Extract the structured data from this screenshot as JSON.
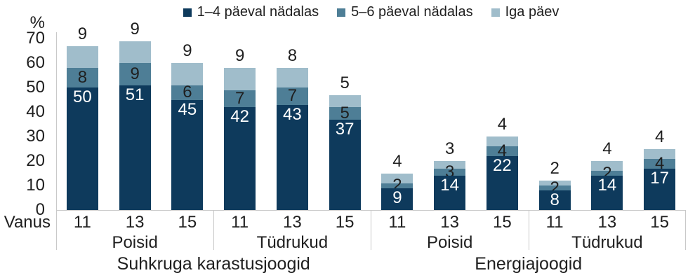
{
  "legend": {
    "items": [
      {
        "label": "1–4 päeval nädalas",
        "color": "#0e3a5c"
      },
      {
        "label": "5–6 päeval nädalas",
        "color": "#4e7e96"
      },
      {
        "label": "Iga päev",
        "color": "#a0bdcb"
      }
    ]
  },
  "y_axis": {
    "unit": "%",
    "ticks": [
      70,
      60,
      50,
      40,
      30,
      20,
      10,
      0
    ]
  },
  "x_axis": {
    "title": "Vanus"
  },
  "chart_data": {
    "type": "bar",
    "stacked": true,
    "grid": false,
    "legend_position": "top",
    "ylim": [
      0,
      70
    ],
    "y_unit": "%",
    "series_names": [
      "1–4 päeval nädalas",
      "5–6 päeval nädalas",
      "Iga päev"
    ],
    "colors": {
      "s1": "#0e3a5c",
      "s2": "#4e7e96",
      "s3": "#a0bdcb"
    },
    "sections": [
      {
        "label": "Suhkruga karastusjoogid"
      },
      {
        "label": "Energiajoogid"
      }
    ],
    "groups": [
      {
        "section": "Suhkruga karastusjoogid",
        "label": "Poisid",
        "bars": [
          {
            "age": "11",
            "v1": 50,
            "v2": 8,
            "v3": 9
          },
          {
            "age": "13",
            "v1": 51,
            "v2": 9,
            "v3": 9
          },
          {
            "age": "15",
            "v1": 45,
            "v2": 6,
            "v3": 9
          }
        ]
      },
      {
        "section": "Suhkruga karastusjoogid",
        "label": "Tüdrukud",
        "bars": [
          {
            "age": "11",
            "v1": 42,
            "v2": 7,
            "v3": 9
          },
          {
            "age": "13",
            "v1": 43,
            "v2": 7,
            "v3": 8
          },
          {
            "age": "15",
            "v1": 37,
            "v2": 5,
            "v3": 5
          }
        ]
      },
      {
        "section": "Energiajoogid",
        "label": "Poisid",
        "bars": [
          {
            "age": "11",
            "v1": 9,
            "v2": 2,
            "v3": 4
          },
          {
            "age": "13",
            "v1": 14,
            "v2": 3,
            "v3": 3
          },
          {
            "age": "15",
            "v1": 22,
            "v2": 4,
            "v3": 4
          }
        ]
      },
      {
        "section": "Energiajoogid",
        "label": "Tüdrukud",
        "bars": [
          {
            "age": "11",
            "v1": 8,
            "v2": 2,
            "v3": 2
          },
          {
            "age": "13",
            "v1": 14,
            "v2": 2,
            "v3": 4
          },
          {
            "age": "15",
            "v1": 17,
            "v2": 4,
            "v3": 4
          }
        ]
      }
    ]
  }
}
